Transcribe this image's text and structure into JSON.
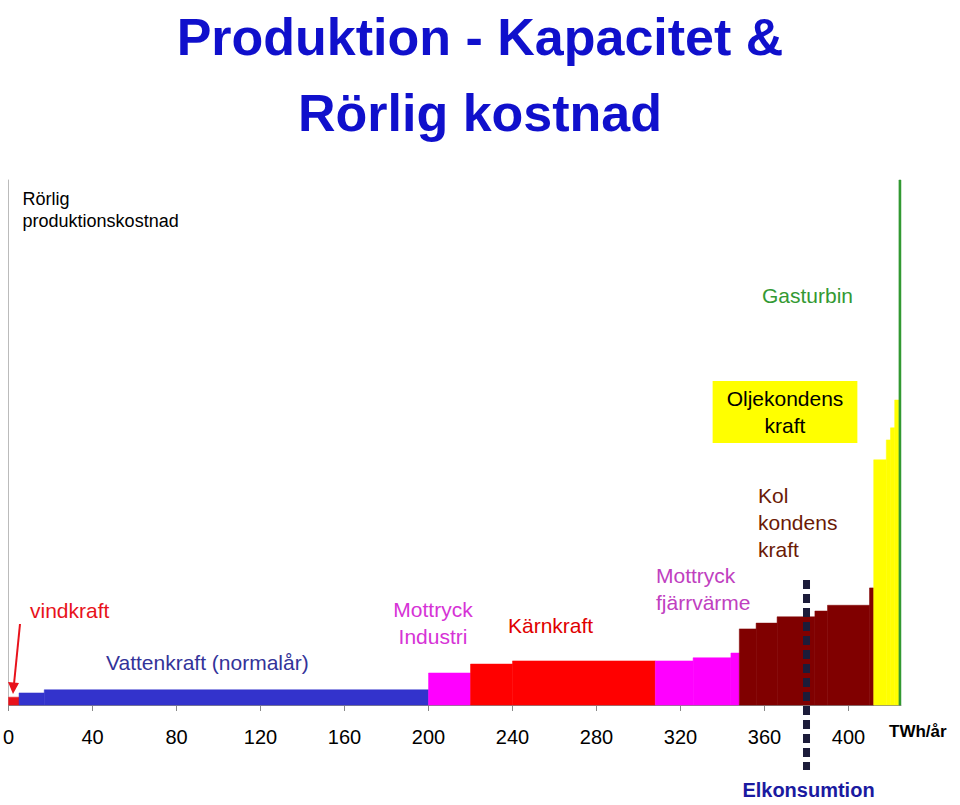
{
  "chart_data": {
    "type": "step",
    "title": "Produktion - Kapacitet &\nRörlig kostnad",
    "xlabel": "TWh/år",
    "ylabel": "Rörlig\nproduktionskostnad",
    "xlim": [
      0,
      425
    ],
    "xticks": [
      0,
      40,
      80,
      120,
      160,
      200,
      240,
      280,
      320,
      360,
      400
    ],
    "ylim": [
      0,
      100
    ],
    "yticks": [],
    "tick_labels": "x",
    "grid": false,
    "series": [
      {
        "name": "vindkraft",
        "color": "#e8121b",
        "x_start": [
          0
        ],
        "x_end": [
          5
        ],
        "values": [
          1.5
        ]
      },
      {
        "name": "Vattenkraft (normalår)",
        "color": "#3333cc",
        "x_start": [
          5,
          17
        ],
        "x_end": [
          17,
          200
        ],
        "values": [
          2.3,
          2.9
        ]
      },
      {
        "name": "Mottryck\nIndustri",
        "color": "#ff00ff",
        "x_start": [
          200
        ],
        "x_end": [
          220
        ],
        "values": [
          6.1
        ]
      },
      {
        "name": "Kärnkraft",
        "color": "#ff0000",
        "x_start": [
          220,
          240
        ],
        "x_end": [
          240,
          308
        ],
        "values": [
          7.8,
          8.4
        ]
      },
      {
        "name": "Mottryck\nfjärrvärme",
        "color": "#ff00ff",
        "x_start": [
          308,
          326,
          344
        ],
        "x_end": [
          326,
          344,
          348
        ],
        "values": [
          8.4,
          9.0,
          9.9
        ]
      },
      {
        "name": "Kol\nkondens\nkraft",
        "color": "#800000",
        "x_start": [
          348,
          356,
          366,
          384,
          390,
          410
        ],
        "x_end": [
          356,
          366,
          384,
          390,
          410,
          412
        ],
        "values": [
          14.5,
          15.6,
          16.8,
          17.9,
          19.0,
          22.3
        ]
      },
      {
        "name": "Oljekondens\nkraft",
        "color": "#ffff00",
        "x_start": [
          412,
          418,
          420,
          422
        ],
        "x_end": [
          418,
          420,
          422,
          424
        ],
        "values": [
          46.7,
          50.5,
          52.8,
          58.1
        ]
      },
      {
        "name": "Gasturbin",
        "color": "#339933",
        "x_start": [
          424
        ],
        "x_end": [
          425
        ],
        "values": [
          100
        ]
      }
    ],
    "annotations": [
      {
        "text": "Elkonsumtion",
        "x": 380
      }
    ]
  }
}
